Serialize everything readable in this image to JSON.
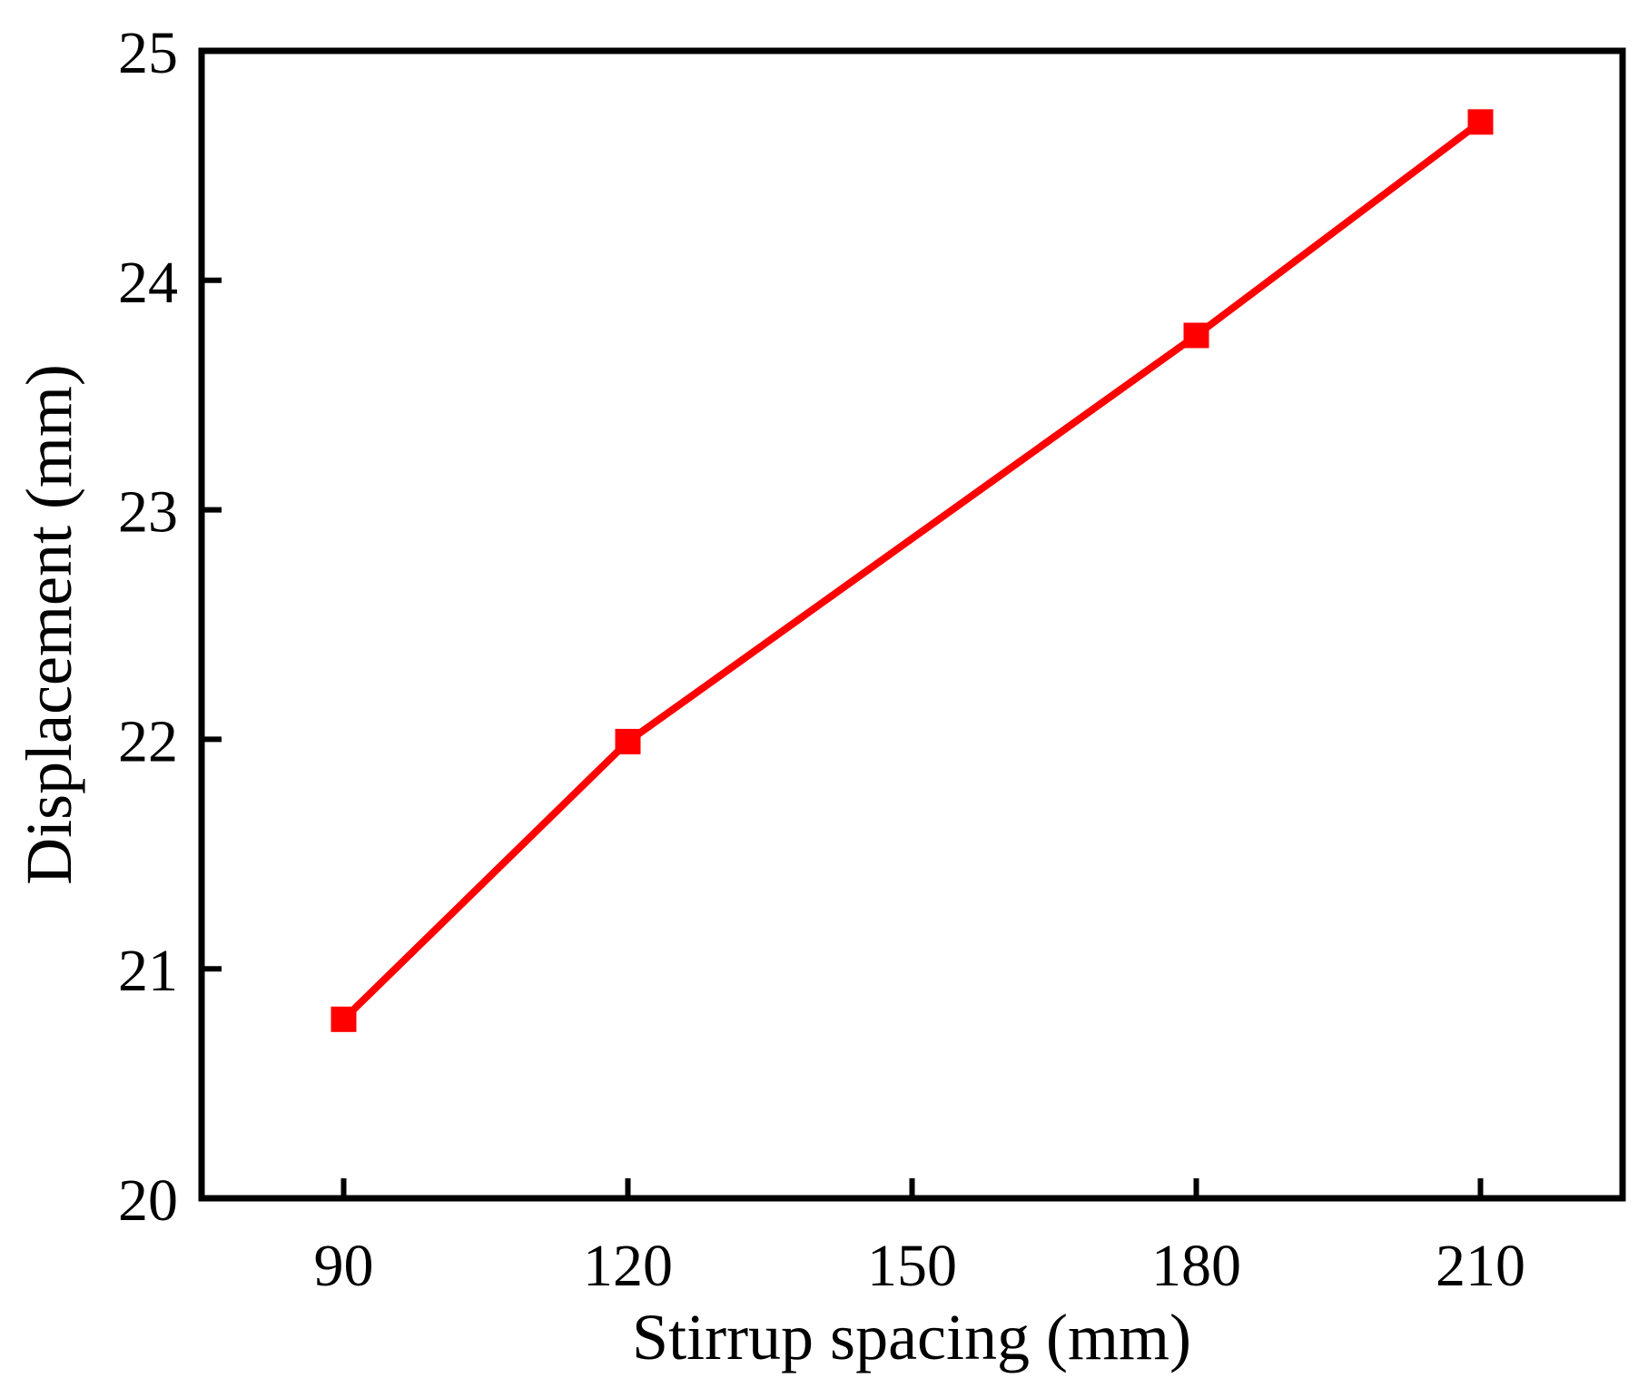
{
  "chart_data": {
    "type": "line",
    "title": "",
    "xlabel": "Stirrup spacing (mm)",
    "ylabel": "Displacement (mm)",
    "x": [
      90,
      120,
      180,
      210
    ],
    "series": [
      {
        "values": [
          20.78,
          21.99,
          23.76,
          24.69
        ]
      }
    ],
    "xlim": [
      75,
      225
    ],
    "ylim": [
      20,
      25
    ],
    "xticks": [
      "90",
      "120",
      "150",
      "180",
      "210"
    ],
    "yticks": [
      "20",
      "21",
      "22",
      "23",
      "24",
      "25"
    ],
    "grid": false,
    "legend": "none",
    "marker": "square",
    "line_color": "#ff0000",
    "marker_color": "#ff0000",
    "axis_color": "#000000"
  }
}
